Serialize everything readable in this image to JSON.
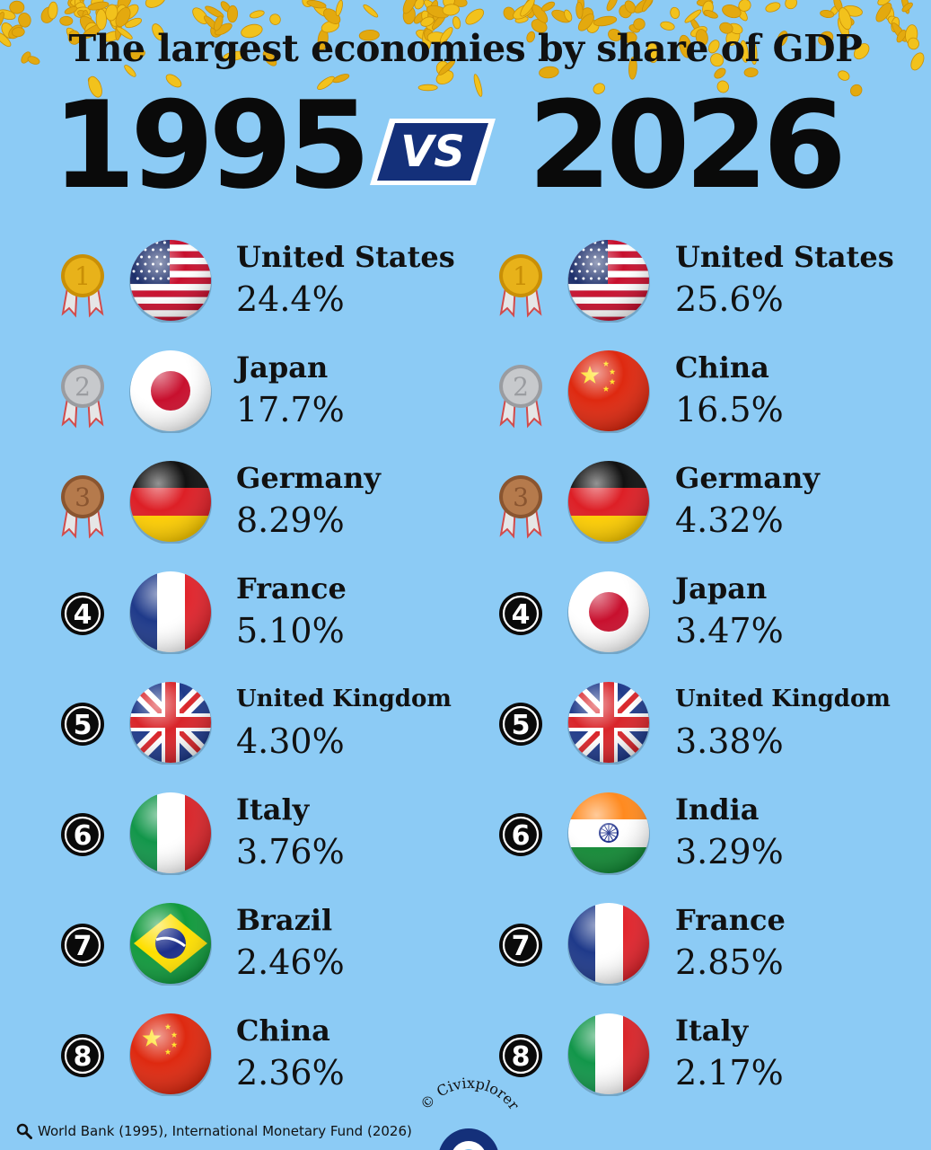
{
  "title": "The largest economies by share of GDP",
  "years": {
    "left": "1995",
    "vs": "VS",
    "right": "2026"
  },
  "left_column": [
    {
      "rank": "1",
      "country": "United States",
      "share": "24.4%",
      "flag": "us-flag"
    },
    {
      "rank": "2",
      "country": "Japan",
      "share": "17.7%",
      "flag": "japan-flag"
    },
    {
      "rank": "3",
      "country": "Germany",
      "share": "8.29%",
      "flag": "germany-flag"
    },
    {
      "rank": "4",
      "country": "France",
      "share": "5.10%",
      "flag": "france-flag"
    },
    {
      "rank": "5",
      "country": "United Kingdom",
      "share": "4.30%",
      "flag": "uk-flag"
    },
    {
      "rank": "6",
      "country": "Italy",
      "share": "3.76%",
      "flag": "italy-flag"
    },
    {
      "rank": "7",
      "country": "Brazil",
      "share": "2.46%",
      "flag": "brazil-flag"
    },
    {
      "rank": "8",
      "country": "China",
      "share": "2.36%",
      "flag": "china-flag"
    }
  ],
  "right_column": [
    {
      "rank": "1",
      "country": "United States",
      "share": "25.6%",
      "flag": "us-flag"
    },
    {
      "rank": "2",
      "country": "China",
      "share": "16.5%",
      "flag": "china-flag"
    },
    {
      "rank": "3",
      "country": "Germany",
      "share": "4.32%",
      "flag": "germany-flag"
    },
    {
      "rank": "4",
      "country": "Japan",
      "share": "3.47%",
      "flag": "japan-flag"
    },
    {
      "rank": "5",
      "country": "United Kingdom",
      "share": "3.38%",
      "flag": "uk-flag"
    },
    {
      "rank": "6",
      "country": "India",
      "share": "3.29%",
      "flag": "india-flag"
    },
    {
      "rank": "7",
      "country": "France",
      "share": "2.85%",
      "flag": "france-flag"
    },
    {
      "rank": "8",
      "country": "Italy",
      "share": "2.17%",
      "flag": "italy-flag"
    }
  ],
  "source": "World Bank (1995), International Monetary Fund (2026)",
  "watermark": "© Civixplorer",
  "colors": {
    "background": "#8ccbf5",
    "gold": "#e8b21a",
    "silver": "#c7c9cc",
    "bronze": "#b57a4c",
    "vs_badge": "#14307a"
  }
}
